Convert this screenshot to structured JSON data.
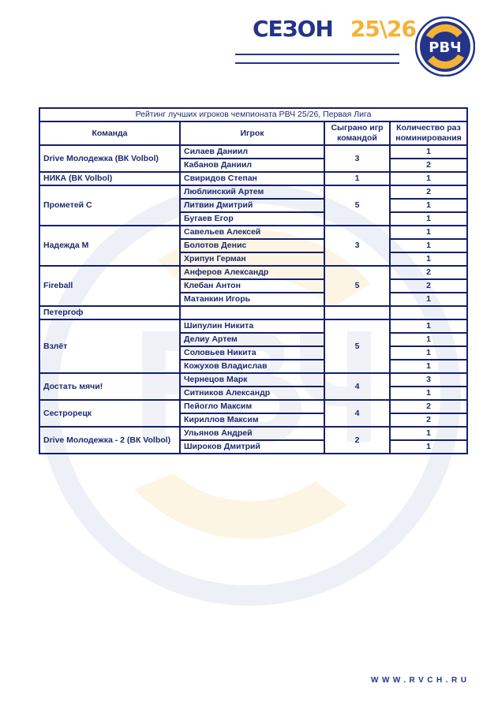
{
  "header": {
    "season_word": "СЕЗОН",
    "season_year": "25\\26",
    "logo_text": "РВЧ"
  },
  "colors": {
    "navy": "#1c2a6e",
    "gold": "#f5b335"
  },
  "table": {
    "title": "Рейтинг лучших игроков чемпионата РВЧ 25/26, Первая Лига",
    "columns": [
      "Команда",
      "Игрок",
      "Сыграно игр командой",
      "Количество раз номинирования"
    ],
    "teams": [
      {
        "team": "Drive Молодежка (ВК Volbol)",
        "games": "3",
        "players": [
          {
            "name": "Силаев Даниил",
            "noms": "1"
          },
          {
            "name": "Кабанов Даниил",
            "noms": "2"
          }
        ]
      },
      {
        "team": "НИКА (ВК Volbol)",
        "games": "1",
        "players": [
          {
            "name": "Свиридов Степан",
            "noms": "1"
          }
        ]
      },
      {
        "team": "Прометей С",
        "games": "5",
        "players": [
          {
            "name": "Люблинский Артем",
            "noms": "2"
          },
          {
            "name": "Литвин Дмитрий",
            "noms": "1"
          },
          {
            "name": "Бугаев Егор",
            "noms": "1"
          }
        ]
      },
      {
        "team": "Надежда М",
        "games": "3",
        "players": [
          {
            "name": "Савельев Алексей",
            "noms": "1"
          },
          {
            "name": "Болотов Денис",
            "noms": "1"
          },
          {
            "name": "Хрипун Герман",
            "noms": "1"
          }
        ]
      },
      {
        "team": "Fireball",
        "games": "5",
        "players": [
          {
            "name": "Анферов Александр",
            "noms": "2"
          },
          {
            "name": "Клебан Антон",
            "noms": "2"
          },
          {
            "name": "Матанкин Игорь",
            "noms": "1"
          }
        ]
      },
      {
        "team": "Петергоф",
        "games": "",
        "players": [
          {
            "name": "",
            "noms": ""
          }
        ]
      },
      {
        "team": "Взлёт",
        "games": "5",
        "players": [
          {
            "name": "Шипулин Никита",
            "noms": "1"
          },
          {
            "name": "Делиу Артем",
            "noms": "1"
          },
          {
            "name": "Соловьев Никита",
            "noms": "1"
          },
          {
            "name": "Кожухов Владислав",
            "noms": "1"
          }
        ]
      },
      {
        "team": "Достать мячи!",
        "games": "4",
        "players": [
          {
            "name": "Чернецов Марк",
            "noms": "3"
          },
          {
            "name": "Ситников Александр",
            "noms": "1"
          }
        ]
      },
      {
        "team": "Сестрорецк",
        "games": "4",
        "players": [
          {
            "name": "Пейогло Максим",
            "noms": "2"
          },
          {
            "name": "Кириллов Максим",
            "noms": "2"
          }
        ]
      },
      {
        "team": "Drive Молодежка - 2 (ВК Volbol)",
        "games": "2",
        "players": [
          {
            "name": "Ульянов Андрей",
            "noms": "1"
          },
          {
            "name": "Широков Дмитрий",
            "noms": "1"
          }
        ]
      }
    ]
  },
  "footer": {
    "url": "WWW.RVCH.RU"
  }
}
